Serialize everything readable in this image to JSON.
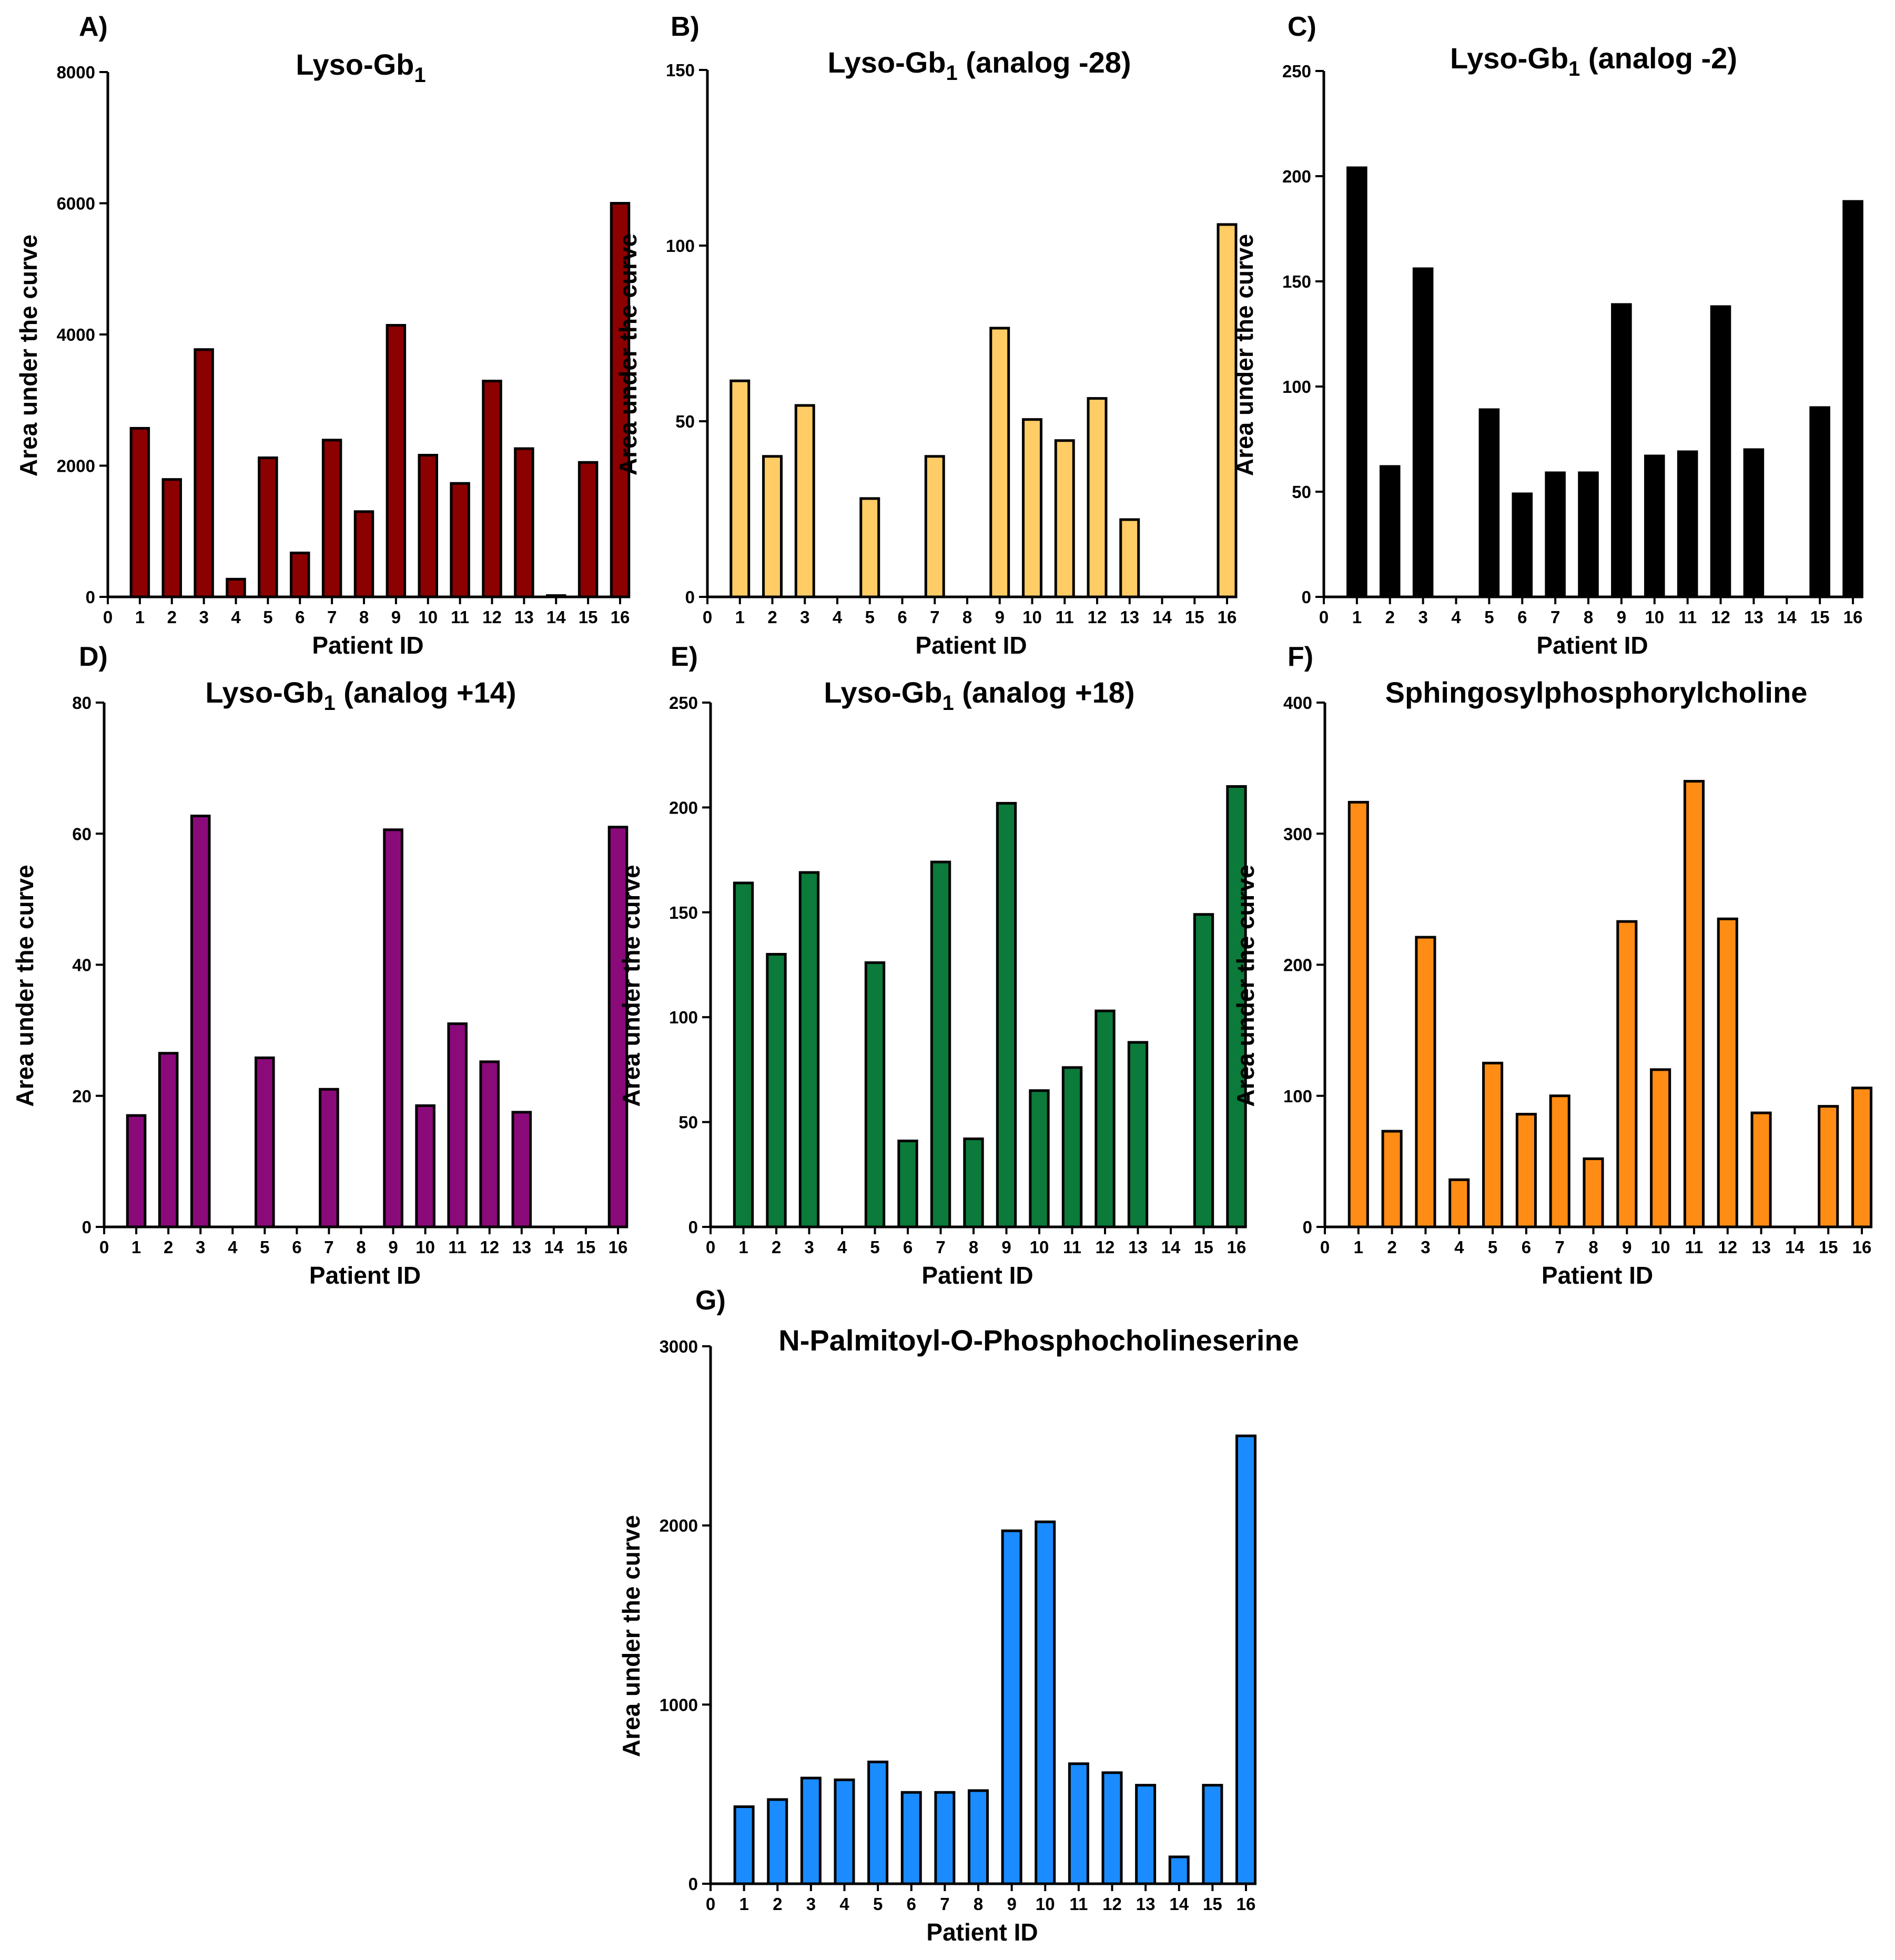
{
  "chart_data": [
    {
      "panel": "A)",
      "type": "bar",
      "title": "Lyso-Gb1",
      "title_main": "Lyso-Gb",
      "title_sub": "1",
      "title_suffix": "",
      "xlabel": "Patient ID",
      "ylabel": "Area under the curve",
      "ylim": [
        0,
        8000
      ],
      "yticks": [
        0,
        2000,
        4000,
        6000,
        8000
      ],
      "categories": [
        "0",
        "1",
        "2",
        "3",
        "4",
        "5",
        "6",
        "7",
        "8",
        "9",
        "10",
        "11",
        "12",
        "13",
        "14",
        "15",
        "16"
      ],
      "values": [
        null,
        2570,
        1790,
        3770,
        270,
        2120,
        670,
        2390,
        1300,
        4140,
        2160,
        1730,
        3290,
        2260,
        20,
        2050,
        6000
      ],
      "color": "#8B0000"
    },
    {
      "panel": "B)",
      "type": "bar",
      "title": "Lyso-Gb1 (analog -28)",
      "title_main": "Lyso-Gb",
      "title_sub": "1",
      "title_suffix": " (analog -28)",
      "xlabel": "Patient ID",
      "ylabel": "Area under the curve",
      "ylim": [
        0,
        150
      ],
      "yticks": [
        0,
        50,
        100,
        150
      ],
      "categories": [
        "0",
        "1",
        "2",
        "3",
        "4",
        "5",
        "6",
        "7",
        "8",
        "9",
        "10",
        "11",
        "12",
        "13",
        "14",
        "15",
        "16"
      ],
      "values": [
        null,
        61.5,
        40,
        54.5,
        0,
        28,
        0,
        40,
        0,
        76.5,
        50.5,
        44.5,
        56.5,
        22,
        0,
        0,
        106
      ],
      "color": "#FFCC66"
    },
    {
      "panel": "C)",
      "type": "bar",
      "title": "Lyso-Gb1 (analog -2)",
      "title_main": "Lyso-Gb",
      "title_sub": "1",
      "title_suffix": " (analog -2)",
      "xlabel": "Patient ID",
      "ylabel": "Area under the curve",
      "ylim": [
        0,
        250
      ],
      "yticks": [
        0,
        50,
        100,
        150,
        200,
        250
      ],
      "categories": [
        "0",
        "1",
        "2",
        "3",
        "4",
        "5",
        "6",
        "7",
        "8",
        "9",
        "10",
        "11",
        "12",
        "13",
        "14",
        "15",
        "16"
      ],
      "values": [
        null,
        204,
        62,
        156,
        0,
        89,
        49,
        59,
        59,
        139,
        67,
        69,
        138,
        70,
        0,
        90,
        188
      ],
      "color": "#000000"
    },
    {
      "panel": "D)",
      "type": "bar",
      "title": "Lyso-Gb1 (analog +14)",
      "title_main": "Lyso-Gb",
      "title_sub": "1",
      "title_suffix": " (analog +14)",
      "xlabel": "Patient ID",
      "ylabel": "Area under the curve",
      "ylim": [
        0,
        80
      ],
      "yticks": [
        0,
        20,
        40,
        60,
        80
      ],
      "categories": [
        "0",
        "1",
        "2",
        "3",
        "4",
        "5",
        "6",
        "7",
        "8",
        "9",
        "10",
        "11",
        "12",
        "13",
        "14",
        "15",
        "16"
      ],
      "values": [
        null,
        17,
        26.5,
        62.7,
        0,
        25.8,
        0,
        21,
        0,
        60.6,
        18.5,
        31,
        25.2,
        17.5,
        0,
        0,
        61
      ],
      "color": "#8B0A7A"
    },
    {
      "panel": "E)",
      "type": "bar",
      "title": "Lyso-Gb1 (analog +18)",
      "title_main": "Lyso-Gb",
      "title_sub": "1",
      "title_suffix": " (analog +18)",
      "xlabel": "Patient ID",
      "ylabel": "Area under the curve",
      "ylim": [
        0,
        250
      ],
      "yticks": [
        0,
        50,
        100,
        150,
        200,
        250
      ],
      "categories": [
        "0",
        "1",
        "2",
        "3",
        "4",
        "5",
        "6",
        "7",
        "8",
        "9",
        "10",
        "11",
        "12",
        "13",
        "14",
        "15",
        "16"
      ],
      "values": [
        null,
        164,
        130,
        169,
        0,
        126,
        41,
        174,
        42,
        202,
        65,
        76,
        103,
        88,
        0,
        149,
        210
      ],
      "color": "#0B7A3A"
    },
    {
      "panel": "F)",
      "type": "bar",
      "title": "Sphingosylphosphorylcholine",
      "title_main": "Sphingosylphosphorylcholine",
      "title_sub": "",
      "title_suffix": "",
      "xlabel": "Patient ID",
      "ylabel": "Area under the curve",
      "ylim": [
        0,
        400
      ],
      "yticks": [
        0,
        100,
        200,
        300,
        400
      ],
      "categories": [
        "0",
        "1",
        "2",
        "3",
        "4",
        "5",
        "6",
        "7",
        "8",
        "9",
        "10",
        "11",
        "12",
        "13",
        "14",
        "15",
        "16"
      ],
      "values": [
        null,
        324,
        73,
        221,
        36,
        125,
        86,
        100,
        52,
        233,
        120,
        340,
        235,
        87,
        0,
        92,
        106
      ],
      "color": "#FF8C14"
    },
    {
      "panel": "G)",
      "type": "bar",
      "title": "N-Palmitoyl-O-Phosphocholineserine",
      "title_main": "N-Palmitoyl-O-Phosphocholineserine",
      "title_sub": "",
      "title_suffix": "",
      "xlabel": "Patient ID",
      "ylabel": "Area under the curve",
      "ylim": [
        0,
        3000
      ],
      "yticks": [
        0,
        1000,
        2000,
        3000
      ],
      "categories": [
        "0",
        "1",
        "2",
        "3",
        "4",
        "5",
        "6",
        "7",
        "8",
        "9",
        "10",
        "11",
        "12",
        "13",
        "14",
        "15",
        "16"
      ],
      "values": [
        null,
        430,
        470,
        590,
        580,
        680,
        510,
        510,
        520,
        1970,
        2020,
        670,
        620,
        550,
        150,
        550,
        2500
      ],
      "color": "#1A8CFF"
    }
  ]
}
